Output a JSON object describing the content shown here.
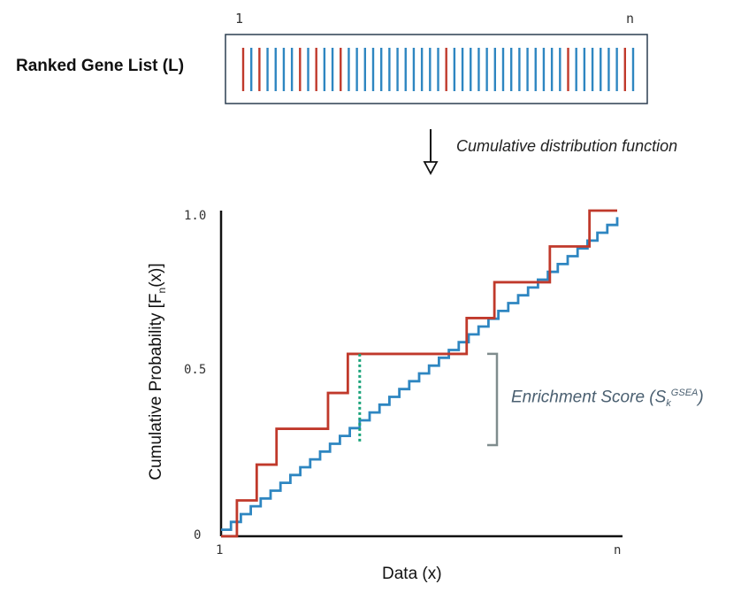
{
  "ranked_list": {
    "title": "Ranked Gene List (L)",
    "start_label": "1",
    "end_label": "n",
    "bars": [
      "red",
      "blue",
      "red",
      "blue",
      "blue",
      "blue",
      "blue",
      "red",
      "blue",
      "red",
      "blue",
      "blue",
      "red",
      "blue",
      "blue",
      "blue",
      "blue",
      "blue",
      "blue",
      "blue",
      "blue",
      "blue",
      "blue",
      "blue",
      "blue",
      "red",
      "blue",
      "blue",
      "blue",
      "blue",
      "blue",
      "blue",
      "blue",
      "blue",
      "blue",
      "blue",
      "blue",
      "blue",
      "blue",
      "blue",
      "red",
      "blue",
      "blue",
      "blue",
      "blue",
      "blue",
      "blue",
      "red",
      "blue"
    ]
  },
  "arrow_label": "Cumulative distribution function",
  "chart_data": {
    "type": "line",
    "xlabel": "Data (x)",
    "ylabel": "Cumulative Probability [F",
    "ylabel_sub": "n",
    "ylabel_end": "(x)]",
    "x_ticks": [
      "1",
      "n"
    ],
    "y_ticks": [
      "0",
      "0.5",
      "1.0"
    ],
    "ylim": [
      0,
      1
    ],
    "series": [
      {
        "color": "#c0392b",
        "points": [
          [
            0.0,
            0.0
          ],
          [
            0.04,
            0.0
          ],
          [
            0.04,
            0.11
          ],
          [
            0.09,
            0.11
          ],
          [
            0.09,
            0.22
          ],
          [
            0.14,
            0.22
          ],
          [
            0.14,
            0.33
          ],
          [
            0.27,
            0.33
          ],
          [
            0.27,
            0.44
          ],
          [
            0.32,
            0.44
          ],
          [
            0.32,
            0.56
          ],
          [
            0.62,
            0.56
          ],
          [
            0.62,
            0.67
          ],
          [
            0.69,
            0.67
          ],
          [
            0.69,
            0.78
          ],
          [
            0.83,
            0.78
          ],
          [
            0.83,
            0.89
          ],
          [
            0.93,
            0.89
          ],
          [
            0.93,
            1.0
          ],
          [
            1.0,
            1.0
          ]
        ]
      },
      {
        "color": "#2e86c1",
        "steps": 40,
        "start": 0.02,
        "end": 0.98
      }
    ],
    "annotation": {
      "label": "Enrichment Score (S",
      "label_sub": "k",
      "label_sup": "GSEA",
      "label_end": ")",
      "dotted_x": 0.35,
      "dotted_y_low": 0.29,
      "dotted_y_high": 0.56,
      "bracket_y_low": 0.28,
      "bracket_y_high": 0.56
    }
  },
  "colors": {
    "red": "#c0392b",
    "blue": "#2e86c1",
    "dotted": "#1aa37a",
    "bracket": "#7f8c8d"
  }
}
